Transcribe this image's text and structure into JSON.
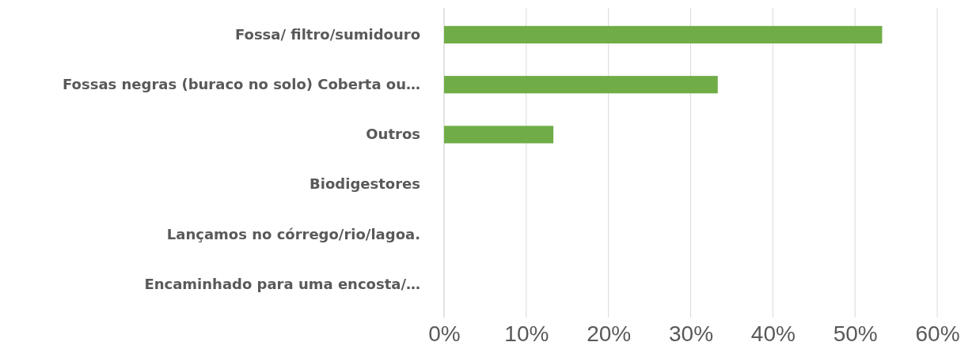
{
  "chart_data": {
    "type": "bar",
    "orientation": "horizontal",
    "categories": [
      "Fossa/ filtro/sumidouro",
      "Fossas negras (buraco no solo) Coberta ou…",
      "Outros",
      "Biodigestores",
      "Lançamos no córrego/rio/lagoa.",
      "Encaminhado para uma encosta/…"
    ],
    "values": [
      53.3,
      33.3,
      13.3,
      0,
      0,
      0
    ],
    "color": "#70ad47",
    "xlim": [
      0,
      60
    ],
    "xticks": [
      {
        "value": 0,
        "label": "0%"
      },
      {
        "value": 10,
        "label": "10%"
      },
      {
        "value": 20,
        "label": "20%"
      },
      {
        "value": 30,
        "label": "30%"
      },
      {
        "value": 40,
        "label": "40%"
      },
      {
        "value": 50,
        "label": "50%"
      },
      {
        "value": 60,
        "label": "60%"
      }
    ],
    "grid": "x"
  }
}
